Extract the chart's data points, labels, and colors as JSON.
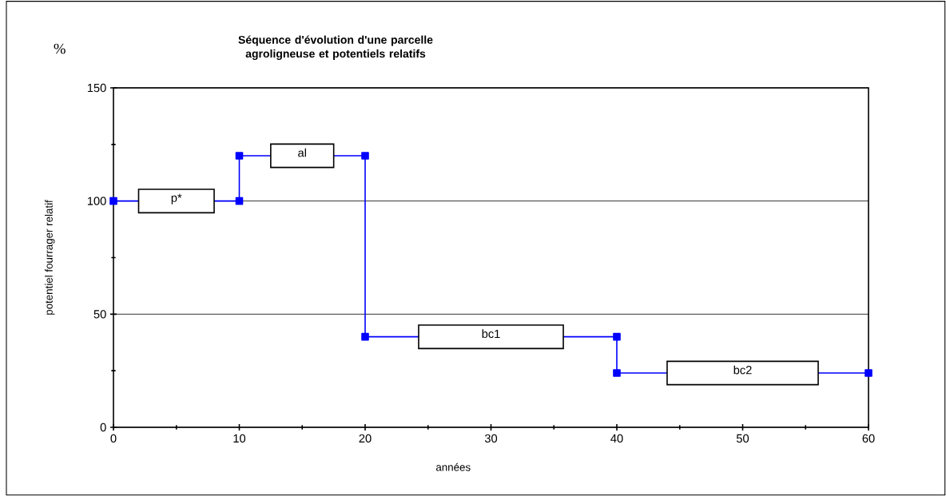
{
  "chart_data": {
    "type": "line",
    "title": "Séquence d'évolution d'une parcelle\nagroligneuse et potentiels relatifs",
    "xlabel": "années",
    "ylabel": "potentiel fourrager relatif",
    "x": [
      0,
      10,
      10,
      20,
      20,
      40,
      40,
      60
    ],
    "series": [
      {
        "color": "#0000ff",
        "values": [
          100,
          100,
          120,
          120,
          40,
          40,
          24,
          24
        ]
      }
    ],
    "marker": "square",
    "line_style": "solid",
    "grid": "y",
    "xlim": [
      0,
      60
    ],
    "ylim": [
      0,
      150
    ],
    "xticks": [
      0,
      {
        "value": 5,
        "label": null
      },
      10,
      {
        "value": 15,
        "label": null
      },
      20,
      {
        "value": 25,
        "label": null
      },
      30,
      {
        "value": 35,
        "label": null
      },
      40,
      {
        "value": 45,
        "label": null
      },
      50,
      {
        "value": 55,
        "label": null
      },
      60
    ],
    "yticks": [
      0,
      {
        "value": 25,
        "label": null
      },
      50,
      {
        "value": 75,
        "label": null
      },
      100,
      {
        "value": 125,
        "label": null
      },
      150
    ],
    "annotations": [
      "%",
      {
        "text": "p*",
        "x": 5,
        "y": 100
      },
      {
        "text": "al",
        "x": 15,
        "y": 120
      },
      {
        "text": "bc1",
        "x": 30,
        "y": 40
      },
      {
        "text": "bc2",
        "x": 50,
        "y": 24
      }
    ]
  }
}
